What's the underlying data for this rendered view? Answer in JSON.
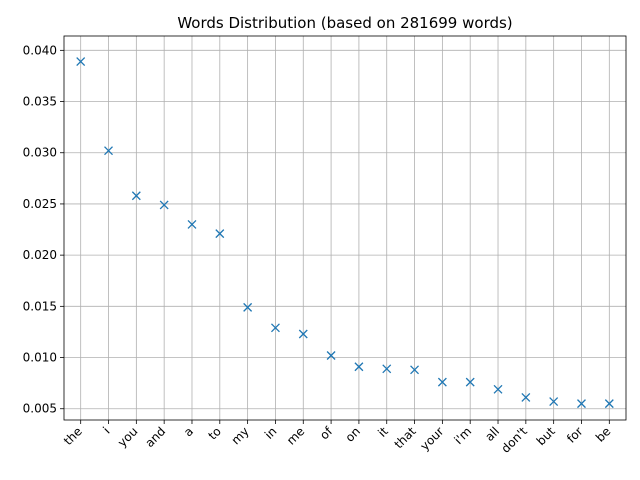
{
  "chart_data": {
    "type": "scatter",
    "title": "Words Distribution (based on 281699 words)",
    "xlabel": "",
    "ylabel": "",
    "categories": [
      "the",
      "i",
      "you",
      "and",
      "a",
      "to",
      "my",
      "in",
      "me",
      "of",
      "on",
      "it",
      "that",
      "your",
      "i'm",
      "all",
      "don't",
      "but",
      "for",
      "be"
    ],
    "series": [
      {
        "values": [
          0.0389,
          0.0302,
          0.0258,
          0.0249,
          0.023,
          0.0221,
          0.0149,
          0.0129,
          0.0123,
          0.0102,
          0.0091,
          0.0089,
          0.0088,
          0.0076,
          0.0076,
          0.0069,
          0.0061,
          0.0057,
          0.0055,
          0.0055
        ],
        "marker": "x",
        "color": "#1f77b4"
      }
    ],
    "ylim": [
      0.0039,
      0.0414
    ],
    "yticks": [
      "0.005",
      "0.010",
      "0.015",
      "0.020",
      "0.025",
      "0.030",
      "0.035",
      "0.040"
    ],
    "grid": true,
    "legend": "none"
  }
}
